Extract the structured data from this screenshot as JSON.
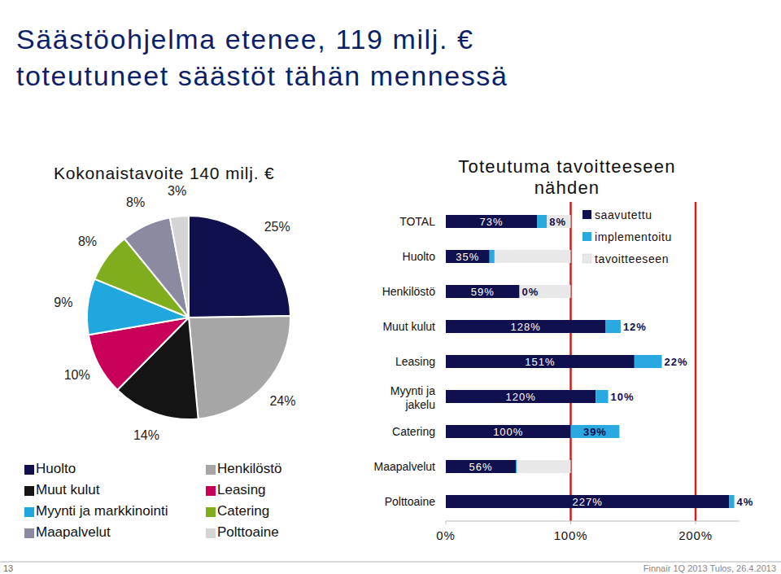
{
  "header": {
    "title": [
      "Säästöohjelma etenee, 119 milj. €",
      "toteutuneet säästöt tähän mennessä"
    ]
  },
  "footer": {
    "page": "13",
    "source": "Finnair 1Q 2013 Tulos, 26.4.2013"
  },
  "chart_data": [
    {
      "type": "pie",
      "title": "Kokonaistavoite 140 milj. €",
      "categories": [
        "Huolto",
        "Henkilöstö",
        "Muut kulut",
        "Leasing",
        "Myynti ja markkinointi",
        "Catering",
        "Maapalvelut",
        "Polttoaine"
      ],
      "values": [
        25,
        24,
        14,
        10,
        9,
        8,
        8,
        3
      ],
      "value_labels": [
        "25%",
        "24%",
        "14%",
        "10%",
        "9%",
        "8%",
        "8%",
        "3%"
      ],
      "colors": [
        "#10104e",
        "#a6a6a6",
        "#141414",
        "#c8005a",
        "#1fa7de",
        "#7fad1e",
        "#8a8aa0",
        "#d4d4d4"
      ],
      "data_labels": true,
      "legend": "bottom"
    },
    {
      "type": "bar",
      "orientation": "horizontal",
      "stacked": true,
      "title": [
        "Toteutuma tavoitteeseen",
        "nähden"
      ],
      "categories": [
        "TOTAL",
        "Huolto",
        "Henkilöstö",
        "Muut kulut",
        "Leasing",
        "Myynti ja jakelu",
        "Catering",
        "Maapalvelut",
        "Polttoaine"
      ],
      "series": [
        {
          "name": "saavutettu",
          "color": "#10104e",
          "data_labels": true,
          "values": [
            73,
            35,
            59,
            128,
            151,
            120,
            100,
            56,
            227
          ],
          "value_labels": [
            "73%",
            "35%",
            "59%",
            "128%",
            "151%",
            "120%",
            "100%",
            "56%",
            "227%"
          ]
        },
        {
          "name": "implementoitu",
          "color": "#2aa8e0",
          "data_labels": true,
          "values": [
            8,
            4,
            0,
            12,
            22,
            10,
            39,
            1,
            4
          ],
          "value_labels": [
            "8%",
            null,
            "0%",
            "12%",
            "22%",
            "10%",
            "39%",
            null,
            "4%"
          ]
        },
        {
          "name": "tavoitteeseen",
          "color": "#e8e8e8",
          "data_labels": false,
          "values": [
            19,
            61,
            41,
            0,
            0,
            0,
            0,
            43,
            0
          ]
        }
      ],
      "xlim": [
        0,
        235
      ],
      "xticks": [
        {
          "value": 0,
          "label": "0%"
        },
        {
          "value": 100,
          "label": "100%"
        },
        {
          "value": 200,
          "label": "200%"
        }
      ],
      "grid": true,
      "legend": "top-right"
    }
  ]
}
